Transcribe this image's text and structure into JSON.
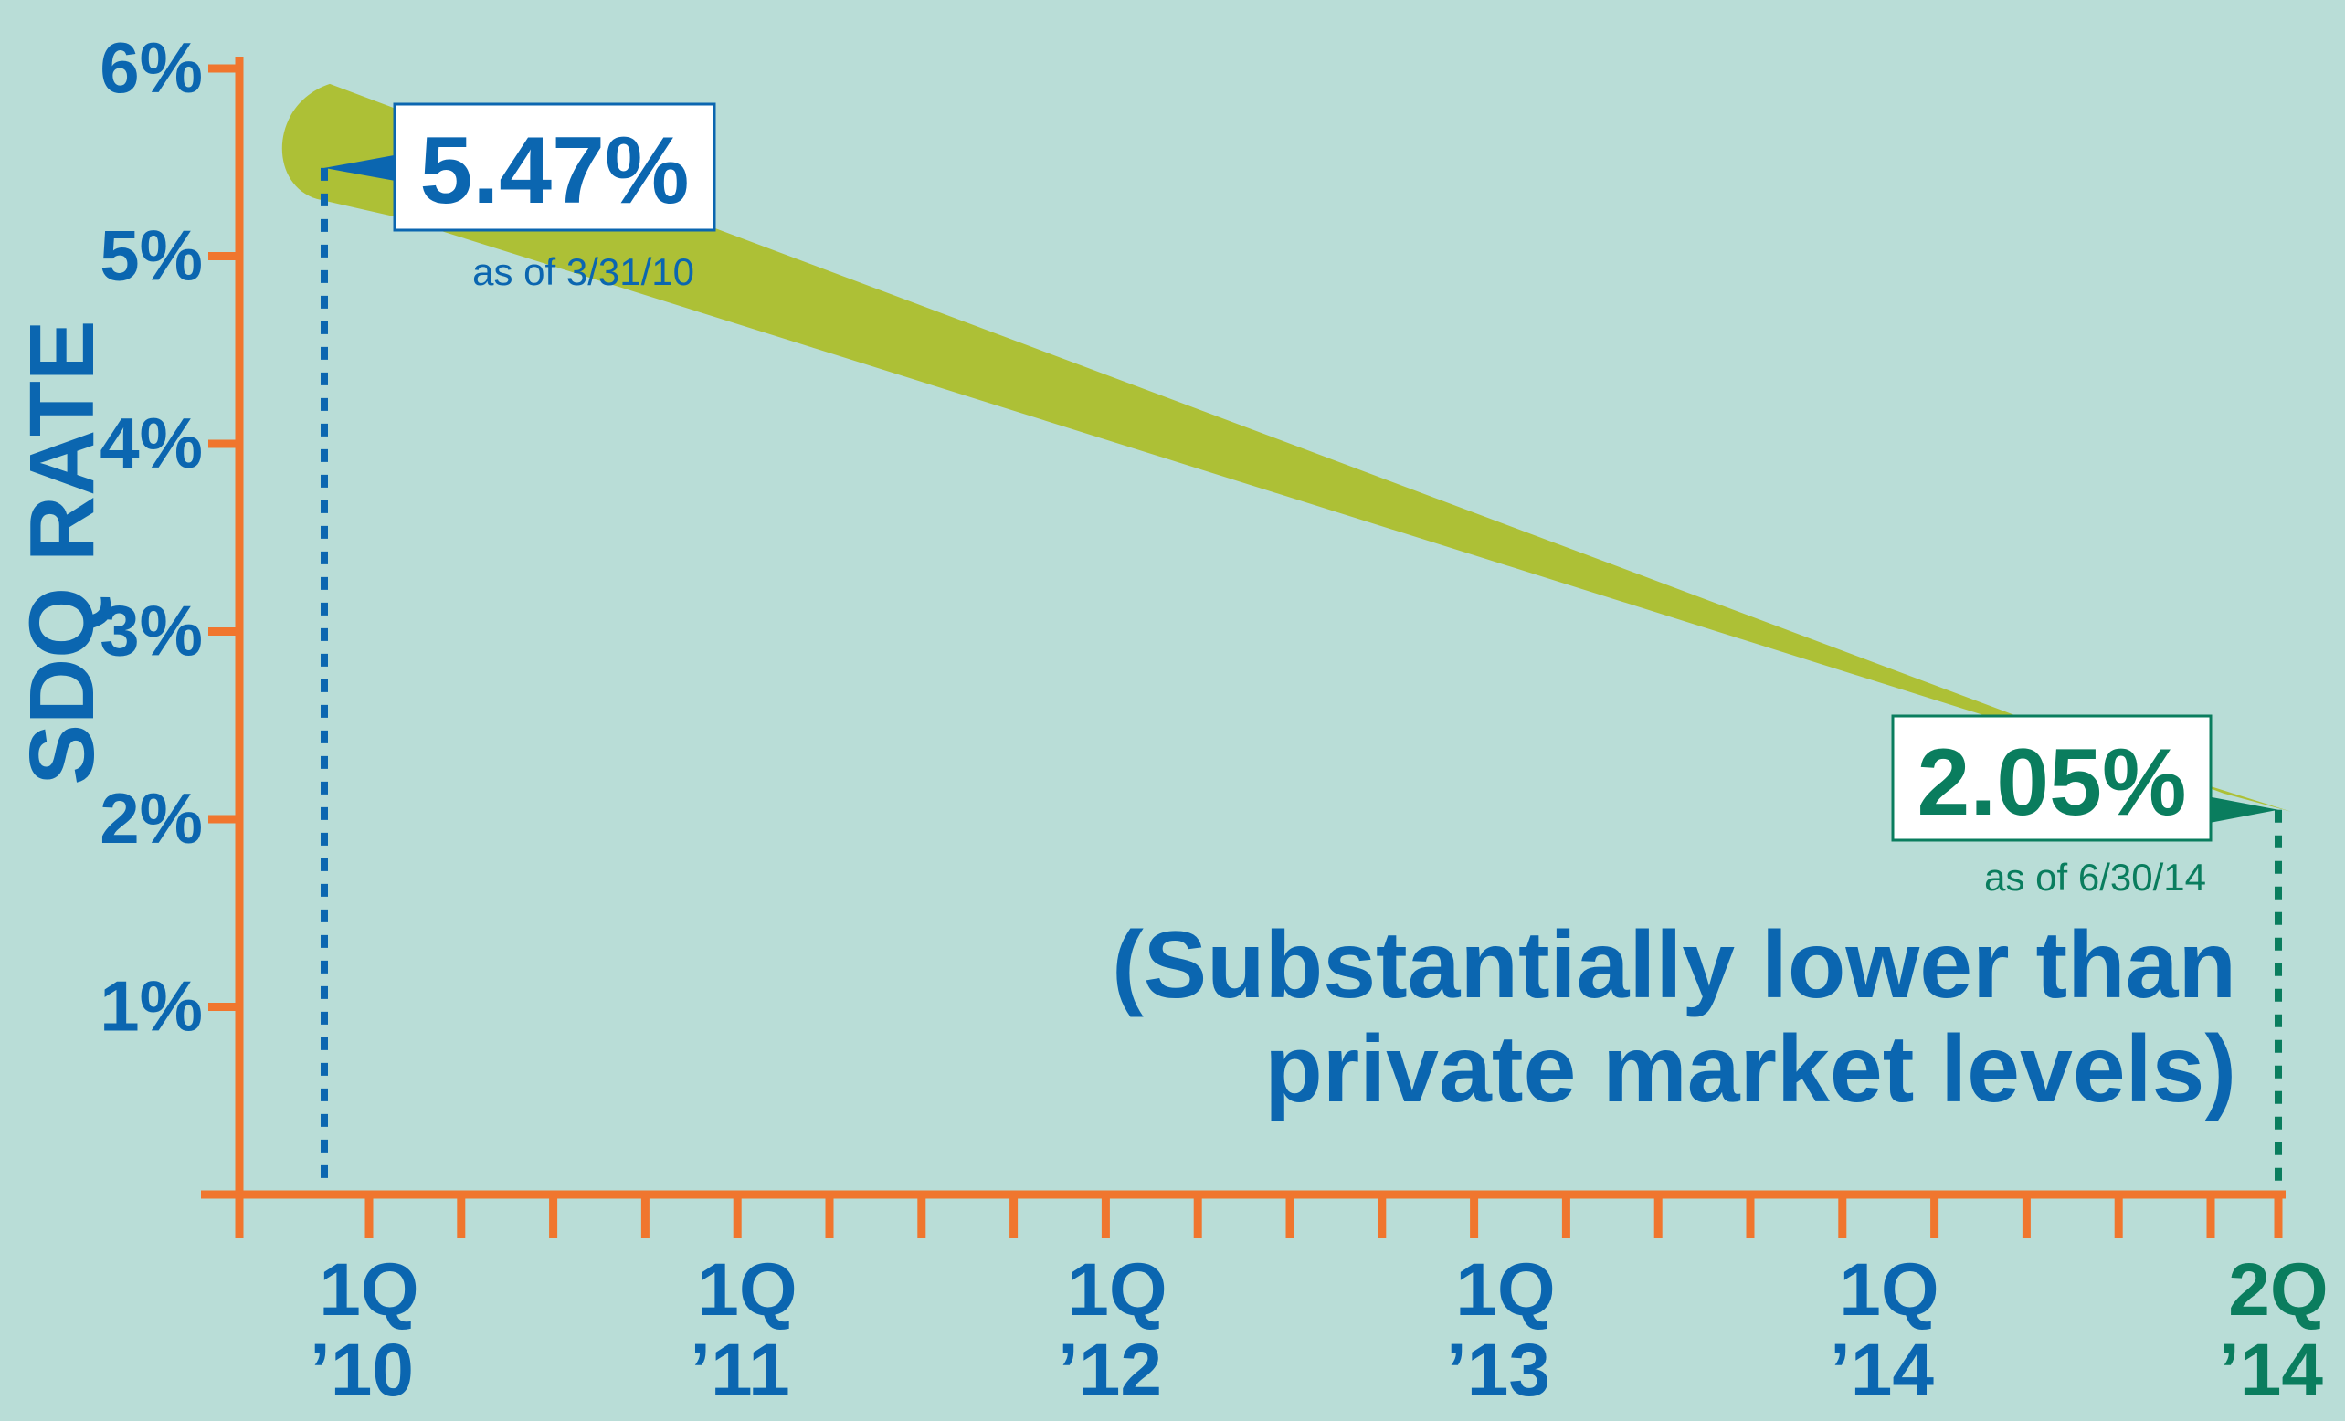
{
  "chart_data": {
    "type": "line",
    "ylabel": "SDQ RATE",
    "xlabel": "",
    "ylim": [
      0,
      6
    ],
    "yticks": [
      {
        "value": 6,
        "label": "6%"
      },
      {
        "value": 5,
        "label": "5%"
      },
      {
        "value": 4,
        "label": "4%"
      },
      {
        "value": 3,
        "label": "3%"
      },
      {
        "value": 2,
        "label": "2%"
      },
      {
        "value": 1,
        "label": "1%"
      }
    ],
    "xticks": [
      {
        "line1": "1Q",
        "line2": "’10",
        "color": "#0b66b0"
      },
      {
        "line1": "1Q",
        "line2": "’11",
        "color": "#0b66b0"
      },
      {
        "line1": "1Q",
        "line2": "’12",
        "color": "#0b66b0"
      },
      {
        "line1": "1Q",
        "line2": "’13",
        "color": "#0b66b0"
      },
      {
        "line1": "1Q",
        "line2": "’14",
        "color": "#0b66b0"
      },
      {
        "line1": "2Q",
        "line2": "’14",
        "color": "#0a7d5e"
      }
    ],
    "series": [
      {
        "x": [
          "1Q ’10",
          "2Q ’14"
        ],
        "values": [
          5.47,
          2.05
        ],
        "color": "#adc036"
      }
    ],
    "annotations": [
      {
        "value": "5.47%",
        "sub": "as of 3/31/10",
        "color": "#0b66b0"
      },
      {
        "value": "2.05%",
        "sub": "as of 6/30/14",
        "color": "#0a7d5e"
      }
    ],
    "note": [
      "(Substantially lower than",
      "private market levels)"
    ],
    "colors": {
      "axis": "#f0762e",
      "primary": "#0b66b0",
      "secondary": "#0a7d5e",
      "trend": "#adc036",
      "background": "#b9ddd7"
    }
  }
}
